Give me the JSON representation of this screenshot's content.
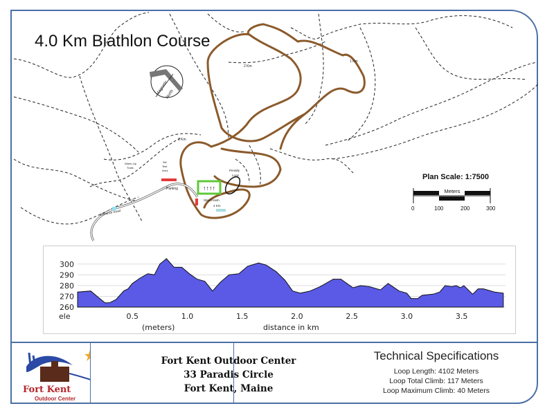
{
  "title": "4.0 Km Biathlon Course",
  "map": {
    "compass_label_1": "Magnetic",
    "compass_label_2": "North",
    "labels": {
      "km1": "1 Km",
      "km2": "2 Km",
      "km3": "3 Km",
      "km4": "4 Km",
      "start_finish": "Start/Finish",
      "penalty_loop_1": "Penalty",
      "penalty_loop_2": "Loop",
      "parking": "Parking",
      "ski_test_1": "Ski",
      "ski_test_2": "Test",
      "ski_test_3": "Area",
      "warmup_1": "Warm-Up",
      "warmup_2": "Trails",
      "entrance_road": "Entrance Road"
    },
    "colors": {
      "course": "#8b5a2b",
      "trails": "#222222",
      "range": "#5ec93a",
      "frame": "#4a6fa5"
    }
  },
  "scale": {
    "title": "Plan Scale: 1:7500",
    "unit": "Meters",
    "ticks": [
      "0",
      "100",
      "200",
      "300"
    ]
  },
  "chart_data": {
    "type": "area",
    "xlabel": "distance in km",
    "ylabel": "(meters)",
    "ylabel_prefix": "ele",
    "xlim": [
      0,
      3.9
    ],
    "ylim": [
      260,
      305
    ],
    "xticks": [
      "0.5",
      "1.0",
      "1.5",
      "2.0",
      "2.5",
      "3.0",
      "3.5"
    ],
    "yticks": [
      "300",
      "290",
      "280",
      "270",
      "260"
    ],
    "grid": true,
    "fill": "#5a5ae6",
    "x": [
      0,
      0.12,
      0.19,
      0.25,
      0.29,
      0.35,
      0.42,
      0.46,
      0.5,
      0.57,
      0.64,
      0.7,
      0.75,
      0.81,
      0.88,
      0.95,
      1.02,
      1.09,
      1.16,
      1.23,
      1.3,
      1.38,
      1.47,
      1.55,
      1.65,
      1.72,
      1.81,
      1.89,
      1.96,
      2.03,
      2.12,
      2.21,
      2.33,
      2.4,
      2.51,
      2.58,
      2.66,
      2.76,
      2.83,
      2.93,
      3.0,
      3.04,
      3.1,
      3.14,
      3.24,
      3.3,
      3.35,
      3.41,
      3.45,
      3.49,
      3.52,
      3.6,
      3.65,
      3.7,
      3.8,
      3.88
    ],
    "y": [
      274,
      275,
      269,
      264,
      264,
      267,
      275,
      277,
      282,
      287,
      291,
      290,
      300,
      305,
      297,
      297,
      291,
      286,
      284,
      275,
      283,
      290,
      291,
      298,
      301,
      299,
      293,
      285,
      275,
      273,
      275,
      279,
      286,
      286,
      278,
      280,
      279,
      276,
      282,
      275,
      273,
      268,
      268,
      271,
      272,
      274,
      280,
      279,
      280,
      278,
      280,
      272,
      277,
      277,
      274,
      273
    ]
  },
  "footer": {
    "logo_line1": "Fort Kent",
    "logo_line2": "Outdoor Center",
    "address": [
      "Fort Kent Outdoor Center",
      "33 Paradis Circle",
      "Fort Kent, Maine"
    ],
    "spec_title": "Technical Specifications",
    "specs": [
      "Loop Length:  4102 Meters",
      "Loop  Total Climb:  117 Meters",
      "Loop Maximum Climb: 40 Meters"
    ]
  }
}
